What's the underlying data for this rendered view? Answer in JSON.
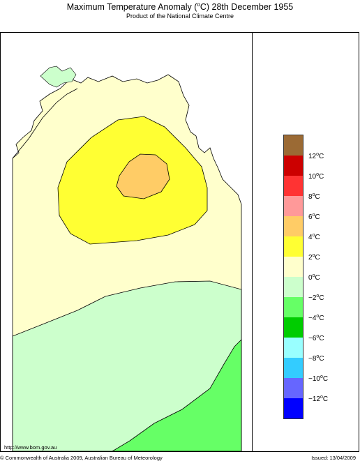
{
  "title": {
    "prefix": "Maximum Temperature Anomaly (",
    "degree": "o",
    "suffix": "C)  28th December 1955"
  },
  "subtitle": "Product of the National Climate Centre",
  "legend": {
    "colors": [
      "#9b6a34",
      "#cc0000",
      "#ff3333",
      "#ff9999",
      "#ffcc66",
      "#ffff33",
      "#ffffcc",
      "#ccffcc",
      "#66ff66",
      "#00cc00",
      "#99ffff",
      "#33ccff",
      "#6666ff",
      "#0000ff"
    ],
    "labels": [
      {
        "value": "12",
        "unit": "C"
      },
      {
        "value": "10",
        "unit": "C"
      },
      {
        "value": "8",
        "unit": "C"
      },
      {
        "value": "6",
        "unit": "C"
      },
      {
        "value": "4",
        "unit": "C"
      },
      {
        "value": "2",
        "unit": "C"
      },
      {
        "value": "0",
        "unit": "C"
      },
      {
        "value": "−2",
        "unit": "C"
      },
      {
        "value": "−4",
        "unit": "C"
      },
      {
        "value": "−6",
        "unit": "C"
      },
      {
        "value": "−8",
        "unit": "C"
      },
      {
        "value": "−10",
        "unit": "C"
      },
      {
        "value": "−12",
        "unit": "C"
      }
    ],
    "degree": "o"
  },
  "map": {
    "sea_color": "#ffffff",
    "zones": [
      {
        "name": "anomaly 0 to 2",
        "color": "#ffffcc"
      },
      {
        "name": "anomaly -2 to 0",
        "color": "#ccffcc"
      },
      {
        "name": "anomaly -4 to -2",
        "color": "#66ff66"
      },
      {
        "name": "anomaly 2 to 4",
        "color": "#ffff33"
      },
      {
        "name": "anomaly 4 to 6",
        "color": "#ffcc66"
      }
    ]
  },
  "footer": {
    "url": "http://www.bom.gov.au",
    "copyright": "© Commonwealth of Australia 2009, Australian Bureau of Meteorology",
    "issued": "Issued: 13/04/2009"
  }
}
